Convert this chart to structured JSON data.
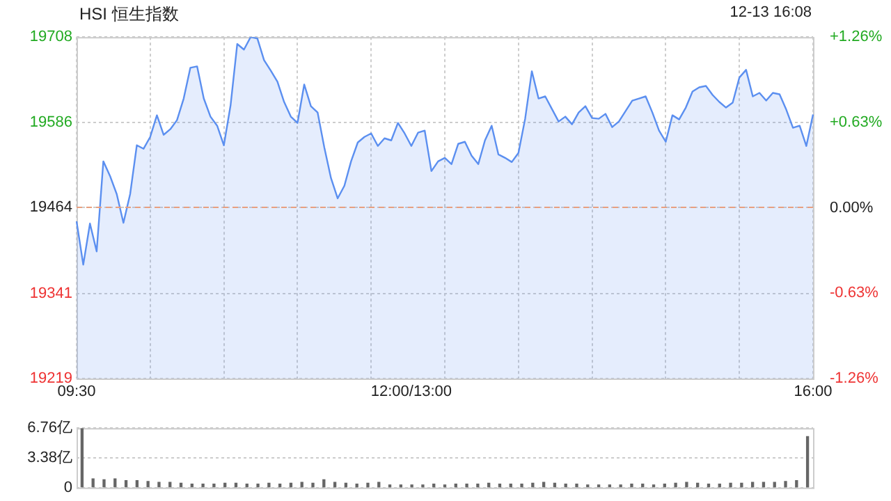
{
  "chart_data": [
    {
      "type": "area",
      "title": "HSI 恒生指数",
      "annotations": [
        "12-13 16:08"
      ],
      "color": "#5b8ff0",
      "categories": [
        "09:30",
        null,
        null,
        null,
        null,
        null,
        null,
        null,
        null,
        null,
        null,
        null,
        null,
        null,
        null,
        null,
        null,
        null,
        null,
        null,
        null,
        null,
        null,
        null,
        null,
        null,
        null,
        null,
        null,
        null,
        null,
        null,
        null,
        null,
        null,
        null,
        null,
        null,
        null,
        null,
        null,
        null,
        null,
        null,
        null,
        null,
        null,
        null,
        null,
        null,
        "12:00/13:00",
        null,
        null,
        null,
        null,
        null,
        null,
        null,
        null,
        null,
        null,
        null,
        null,
        null,
        null,
        null,
        null,
        null,
        null,
        null,
        null,
        null,
        null,
        null,
        null,
        null,
        null,
        null,
        null,
        null,
        null,
        null,
        null,
        null,
        null,
        null,
        null,
        null,
        null,
        null,
        null,
        null,
        null,
        null,
        null,
        null,
        null,
        null,
        null,
        null,
        null,
        null,
        null,
        null,
        null,
        null,
        null,
        null,
        null,
        null,
        "16:00"
      ],
      "values": [
        19444,
        19382,
        19441,
        19401,
        19530,
        19509,
        19483,
        19442,
        19483,
        19553,
        19548,
        19565,
        19596,
        19568,
        19576,
        19589,
        19620,
        19664,
        19666,
        19620,
        19594,
        19581,
        19553,
        19610,
        19698,
        19690,
        19708,
        19706,
        19675,
        19660,
        19644,
        19615,
        19594,
        19585,
        19640,
        19609,
        19600,
        19550,
        19506,
        19477,
        19495,
        19530,
        19557,
        19565,
        19570,
        19552,
        19563,
        19560,
        19585,
        19570,
        19552,
        19571,
        19574,
        19516,
        19530,
        19535,
        19526,
        19555,
        19558,
        19538,
        19526,
        19560,
        19581,
        19540,
        19535,
        19529,
        19542,
        19591,
        19659,
        19620,
        19623,
        19605,
        19587,
        19594,
        19583,
        19600,
        19609,
        19592,
        19591,
        19598,
        19579,
        19587,
        19602,
        19617,
        19620,
        19623,
        19600,
        19574,
        19558,
        19596,
        19590,
        19607,
        19630,
        19636,
        19638,
        19625,
        19615,
        19607,
        19614,
        19650,
        19661,
        19623,
        19628,
        19617,
        19628,
        19626,
        19604,
        19578,
        19581,
        19552,
        19597
      ],
      "ylim": [
        19219,
        19708
      ],
      "yticks": [
        19219,
        19341,
        19464,
        19586,
        19708
      ],
      "y2lim": [
        -1.26,
        1.26
      ],
      "y2ticks": [
        {
          "value": -1.26,
          "label": "-1.26%"
        },
        {
          "value": -0.63,
          "label": "-0.63%"
        },
        {
          "value": 0,
          "label": "0.00%"
        },
        {
          "value": 0.63,
          "label": "+0.63%"
        },
        {
          "value": 1.26,
          "label": "+1.26%"
        }
      ],
      "ref_lines": [
        {
          "axis": "y",
          "value": 19464,
          "color": "#e8a080",
          "line_style": "dashed"
        }
      ],
      "grid": true
    },
    {
      "type": "bar",
      "color": "#666666",
      "categories": [
        null,
        null,
        null,
        null,
        null,
        null,
        null,
        null,
        null,
        null,
        null,
        null,
        null,
        null,
        null,
        null,
        null,
        null,
        null,
        null,
        null,
        null,
        null,
        null,
        null,
        null,
        null,
        null,
        null,
        null,
        null,
        null,
        null,
        null,
        null,
        null,
        null,
        null,
        null,
        null,
        null,
        null,
        null,
        null,
        null,
        null,
        null,
        null,
        null,
        null,
        null,
        null,
        null,
        null,
        null,
        null,
        null,
        null,
        null,
        null,
        null,
        null,
        null,
        null,
        null,
        null,
        null
      ],
      "values": [
        6.7,
        1.0,
        0.9,
        1.0,
        0.8,
        0.8,
        0.7,
        0.6,
        0.6,
        0.5,
        0.4,
        0.4,
        0.4,
        0.5,
        0.5,
        0.4,
        0.4,
        0.5,
        0.4,
        0.5,
        0.6,
        0.5,
        0.9,
        0.6,
        0.5,
        0.4,
        0.5,
        0.6,
        0.3,
        0.3,
        0.3,
        0.3,
        0.4,
        0.3,
        0.4,
        0.4,
        0.4,
        0.5,
        0.4,
        0.4,
        0.4,
        0.5,
        0.6,
        0.5,
        0.4,
        0.4,
        0.3,
        0.3,
        0.3,
        0.3,
        0.4,
        0.4,
        0.3,
        0.4,
        0.5,
        0.6,
        0.5,
        0.4,
        0.4,
        0.5,
        0.5,
        0.6,
        0.6,
        0.6,
        0.7,
        0.8,
        5.8
      ],
      "ylim": [
        0,
        6.76
      ],
      "yticks": [
        0,
        {
          "value": 3.38,
          "label": "3.38亿"
        },
        {
          "value": 6.76,
          "label": "6.76亿"
        }
      ],
      "tick_labels": "y",
      "grid": "y"
    }
  ]
}
